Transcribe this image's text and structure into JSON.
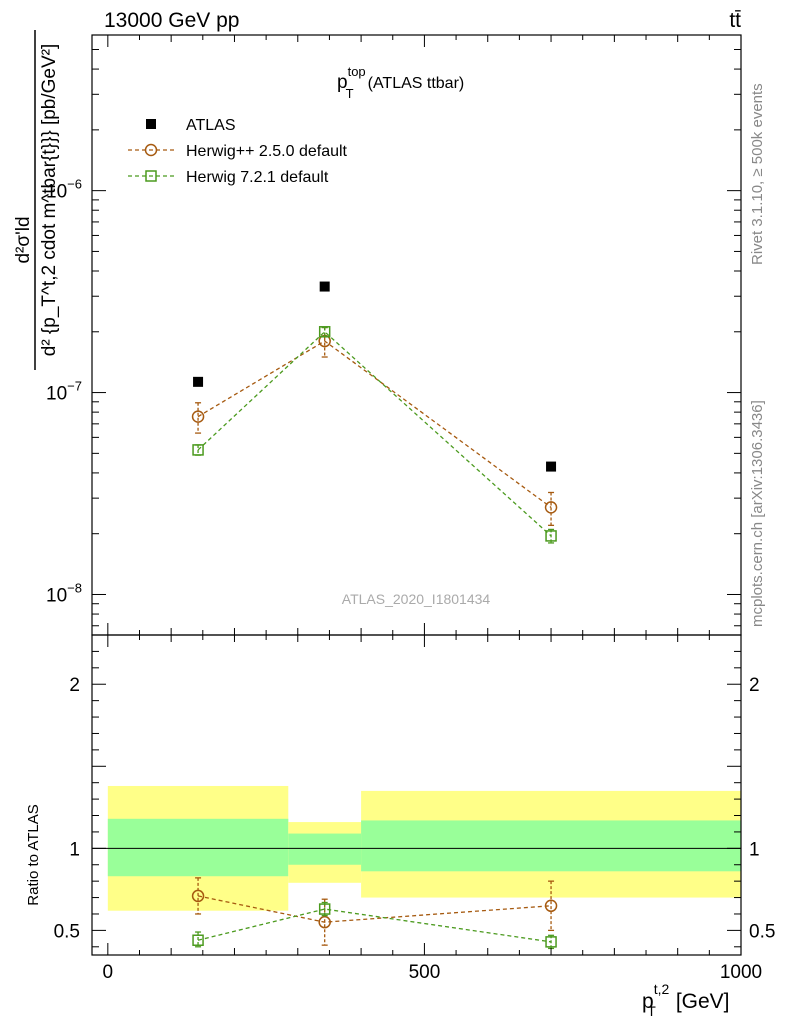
{
  "header": {
    "energy_label": "13000 GeV pp",
    "process_label": "tt̄"
  },
  "side_labels": {
    "rivet": "Rivet 3.1.10, ≥ 500k events",
    "mcplots": "mcplots.cern.ch [arXiv:1306.3436]"
  },
  "chart_data": [
    {
      "type": "scatter",
      "id": "main",
      "title_main": "p",
      "title_sup": "top",
      "title_sub": "T",
      "title_rest": "(ATLAS ttbar)",
      "watermark": "ATLAS_2020_I1801434",
      "yaxis": {
        "scale": "log",
        "range": [
          6.3e-09,
          5.9e-06
        ],
        "label": "d²σ'ld / d²{p_T^t,2 cdot m^tbar{t}}} [pb/GeV²]",
        "label_num": "d²σ'ld",
        "label_den": "d² {p_T^t,2 cdot m^tbar{t}}} [pb/GeV²]",
        "tick_labels": [
          {
            "value": 1e-06,
            "base": "10",
            "exp": "−6"
          },
          {
            "value": 1e-07,
            "base": "10",
            "exp": "−7"
          },
          {
            "value": 1e-08,
            "base": "10",
            "exp": "−8"
          }
        ]
      },
      "xaxis": {
        "range": [
          -25,
          1000
        ]
      },
      "legend": {
        "position": "top-left",
        "entries": [
          {
            "label": "ATLAS",
            "style": "data"
          },
          {
            "label": "Herwig++ 2.5.0 default",
            "style": "circle"
          },
          {
            "label": "Herwig 7.2.1 default",
            "style": "square"
          }
        ]
      },
      "series": [
        {
          "name": "ATLAS",
          "color": "#000000",
          "marker": "filled-square",
          "x": [
            142.5,
            342.5,
            700
          ],
          "y": [
            1.13e-07,
            3.35e-07,
            4.3e-08
          ]
        },
        {
          "name": "Herwig++ 2.5.0 default",
          "color": "#a65a10",
          "marker": "open-circle",
          "x": [
            142.5,
            342.5,
            700
          ],
          "y": [
            7.6e-08,
            1.8e-07,
            2.7e-08
          ],
          "yerr_low": [
            6.3e-08,
            1.5e-07,
            2.2e-08
          ],
          "yerr_high": [
            8.9e-08,
            2.1e-07,
            3.2e-08
          ]
        },
        {
          "name": "Herwig 7.2.1 default",
          "color": "#4b9a1e",
          "marker": "open-square",
          "x": [
            142.5,
            342.5,
            700
          ],
          "y": [
            5.2e-08,
            2e-07,
            1.95e-08
          ],
          "yerr_low": [
            4.9e-08,
            1.9e-07,
            1.8e-08
          ],
          "yerr_high": [
            5.5e-08,
            2.1e-07,
            2.1e-08
          ]
        }
      ]
    },
    {
      "type": "scatter",
      "id": "ratio",
      "yaxis": {
        "scale": "linear",
        "range": [
          0.35,
          2.3
        ],
        "label": "Ratio to ATLAS",
        "ticks": [
          0.5,
          1,
          2
        ],
        "tick_labels": [
          "0.5",
          "1",
          "2"
        ]
      },
      "xaxis": {
        "range": [
          -25,
          1000
        ],
        "ticks": [
          0,
          500,
          1000
        ],
        "tick_labels": [
          "0",
          "500",
          "1000"
        ],
        "label_main": "p",
        "label_sup": "t,2",
        "label_sub": "T",
        "label_rest": "[GeV]"
      },
      "bands": [
        {
          "x": [
            0,
            285
          ],
          "inner": [
            0.83,
            1.18
          ],
          "outer": [
            0.62,
            1.38
          ]
        },
        {
          "x": [
            285,
            400
          ],
          "inner": [
            0.9,
            1.09
          ],
          "outer": [
            0.79,
            1.16
          ]
        },
        {
          "x": [
            400,
            1000
          ],
          "inner": [
            0.86,
            1.17
          ],
          "outer": [
            0.7,
            1.35
          ]
        }
      ],
      "band_colors": {
        "inner": "#99ff99",
        "outer": "#ffff88"
      },
      "series": [
        {
          "name": "Herwig++ 2.5.0 default",
          "color": "#a65a10",
          "marker": "open-circle",
          "x": [
            142.5,
            342.5,
            700
          ],
          "y": [
            0.71,
            0.55,
            0.65
          ],
          "yerr_low": [
            0.6,
            0.41,
            0.5
          ],
          "yerr_high": [
            0.82,
            0.69,
            0.8
          ]
        },
        {
          "name": "Herwig 7.2.1 default",
          "color": "#4b9a1e",
          "marker": "open-square",
          "x": [
            142.5,
            342.5,
            700
          ],
          "y": [
            0.44,
            0.63,
            0.43
          ],
          "yerr_low": [
            0.4,
            0.59,
            0.39
          ],
          "yerr_high": [
            0.49,
            0.67,
            0.47
          ]
        }
      ]
    }
  ]
}
